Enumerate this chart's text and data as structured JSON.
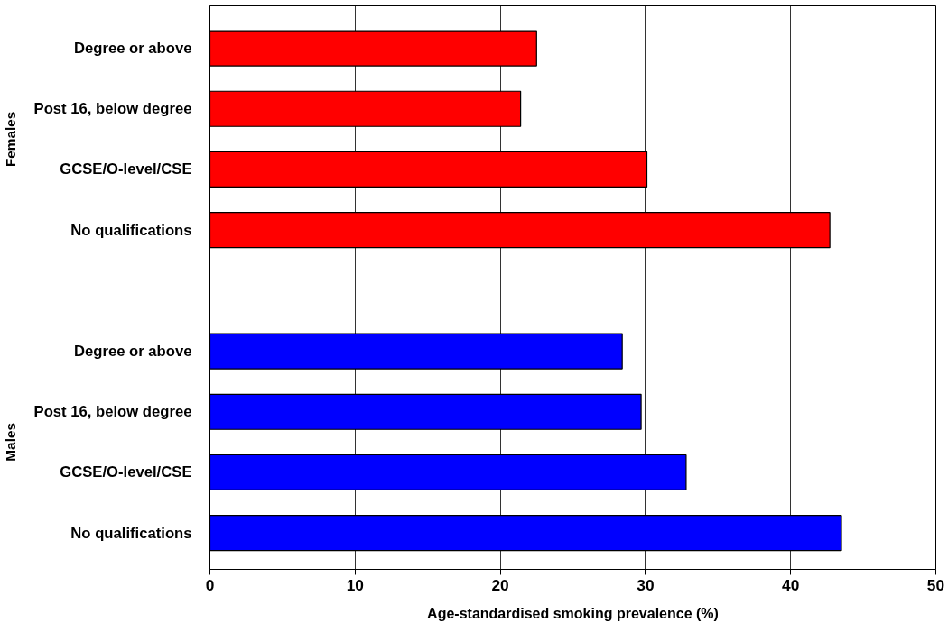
{
  "chart_data": {
    "type": "bar",
    "orientation": "horizontal",
    "categories": [
      "Degree or above",
      "Post 16, below degree",
      "GCSE/O-level/CSE",
      "No qualifications",
      null,
      "Degree or above",
      "Post 16, below degree",
      "GCSE/O-level/CSE",
      "No qualifications"
    ],
    "values": [
      22.5,
      21.4,
      30.1,
      42.7,
      null,
      28.4,
      29.7,
      32.8,
      43.5
    ],
    "colors": [
      "#ff0000",
      "#ff0000",
      "#ff0000",
      "#ff0000",
      null,
      "#0000ff",
      "#0000ff",
      "#0000ff",
      "#0000ff"
    ],
    "xlabel": "Age-standardised smoking prevalence (%)",
    "annotations": [
      "Females",
      "Males"
    ],
    "xlim": [
      0,
      50
    ],
    "xticks": [
      0,
      10,
      20,
      30,
      40,
      50
    ],
    "grid": "x"
  }
}
